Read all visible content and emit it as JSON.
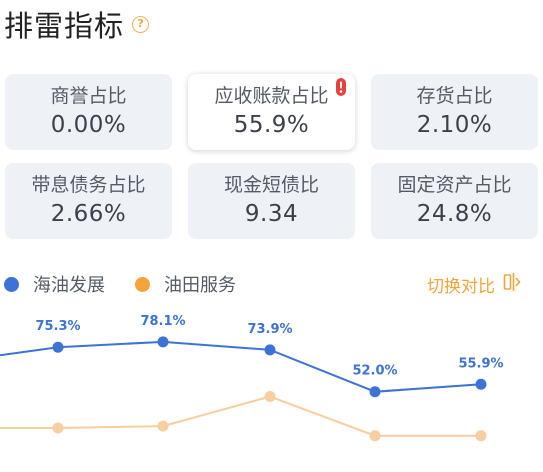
{
  "header": {
    "title": "排雷指标",
    "help_icon": "question-circle-icon"
  },
  "cards": [
    {
      "label": "商誉占比",
      "value": "0.00%",
      "active": false,
      "alert": false
    },
    {
      "label": "应收账款占比",
      "value": "55.9%",
      "active": true,
      "alert": true
    },
    {
      "label": "存货占比",
      "value": "2.10%",
      "active": false,
      "alert": false
    },
    {
      "label": "带息债务占比",
      "value": "2.66%",
      "active": false,
      "alert": false
    },
    {
      "label": "现金短债比",
      "value": "9.34",
      "active": false,
      "alert": false
    },
    {
      "label": "固定资产占比",
      "value": "24.8%",
      "active": false,
      "alert": false
    }
  ],
  "legend": [
    {
      "name": "海油发展",
      "color": "#3d72d6"
    },
    {
      "name": "油田服务",
      "color": "#f5a33c"
    }
  ],
  "switch": {
    "label": "切换对比",
    "icon": "compare-switch-icon",
    "color": "#f0a53a"
  },
  "alert_color": "#e8413b",
  "chart_data": {
    "type": "line",
    "series": [
      {
        "name": "海油发展",
        "values": [
          70.5,
          75.3,
          78.1,
          73.9,
          52.0,
          55.9
        ],
        "labels": [
          "",
          "75.3%",
          "78.1%",
          "73.9%",
          "52.0%",
          "55.9%"
        ],
        "color": "#3d72d6"
      },
      {
        "name": "油田服务",
        "values": [
          33.0,
          33.0,
          34.0,
          49.5,
          29.0,
          29.0
        ],
        "labels": [],
        "color": "#f7ceA0"
      }
    ],
    "ylim": [
      10,
      100
    ],
    "grid": false
  }
}
